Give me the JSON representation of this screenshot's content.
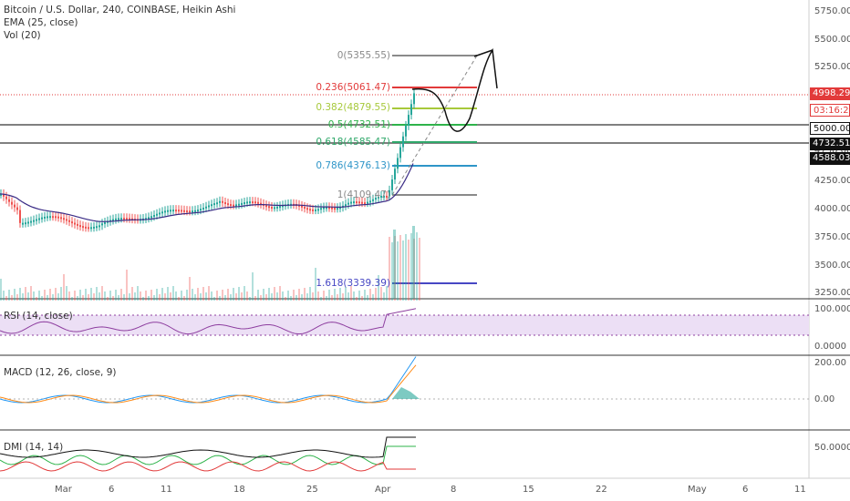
{
  "legend": {
    "title": "Bitcoin / U.S. Dollar, 240, COINBASE, Heikin Ashi",
    "ema": "EMA (25, close)",
    "vol": "Vol (20)"
  },
  "price_axis": [
    "5750.00",
    "5500.00",
    "5250.00",
    "5000.00",
    "4750.00",
    "4500.00",
    "4250.00",
    "4000.00",
    "3750.00",
    "3500.00",
    "3250.00"
  ],
  "price_tags": [
    {
      "text": "4998.29",
      "bg": "#e23a3a",
      "fg": "#ffffff"
    },
    {
      "text": "03:16:20",
      "bg": "#ffffff",
      "fg": "#e23a3a"
    },
    {
      "text": "5000.00",
      "bg": "#ffffff",
      "fg": "#111111"
    },
    {
      "text": "4732.51",
      "bg": "#111111",
      "fg": "#ffffff"
    },
    {
      "text": "4588.03",
      "bg": "#111111",
      "fg": "#ffffff"
    }
  ],
  "fib_levels": [
    {
      "label": "0(5355.55)",
      "color": "#8a8a8a"
    },
    {
      "label": "0.236(5061.47)",
      "color": "#e23a3a"
    },
    {
      "label": "0.382(4879.55)",
      "color": "#a7c93b"
    },
    {
      "label": "0.5(4732.51)",
      "color": "#2eb34a"
    },
    {
      "label": "0.618(4585.47)",
      "color": "#2fa86a"
    },
    {
      "label": "0.786(4376.13)",
      "color": "#2e95c8"
    },
    {
      "label": "1(4109.47)",
      "color": "#8a8a8a"
    },
    {
      "label": "1.618(3339.39)",
      "color": "#4747c4"
    }
  ],
  "panes": {
    "rsi": {
      "label": "RSI (14, close)",
      "ticks": [
        "100.0000",
        "0.0000"
      ]
    },
    "macd": {
      "label": "MACD (12, 26, close, 9)",
      "ticks": [
        "200.00",
        "0.00"
      ]
    },
    "dmi": {
      "label": "DMI (14, 14)",
      "ticks": [
        "50.0000"
      ]
    }
  },
  "date_axis": [
    "Mar",
    "6",
    "11",
    "18",
    "25",
    "Apr",
    "8",
    "15",
    "22",
    "May",
    "6",
    "11"
  ],
  "colors": {
    "up": "#26a69a",
    "down": "#ef5350",
    "ema": "#3b2c86",
    "rsi": "#8e3fa0",
    "macd": "#2196f3",
    "signal": "#ff8c1a"
  }
}
